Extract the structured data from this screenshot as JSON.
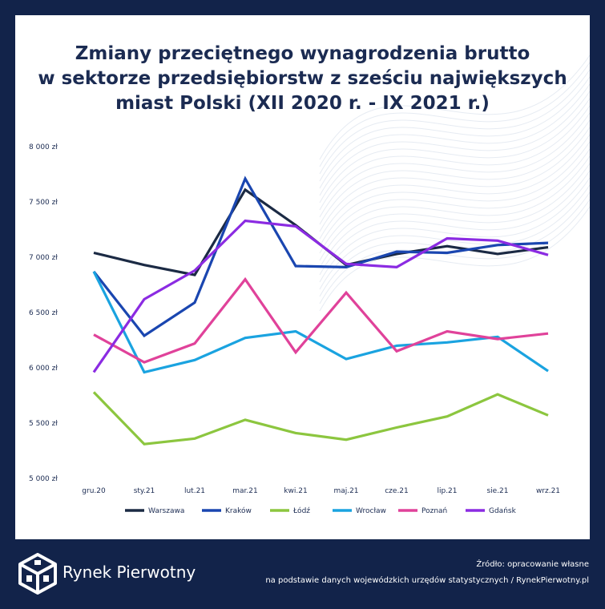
{
  "header": {
    "title_lines": [
      "Zmiany przeciętnego wynagrodzenia brutto",
      "w sektorze przedsiębiorstw z sześciu największych",
      "miast Polski (XII 2020 r. - IX 2021 r.)"
    ]
  },
  "chart_data": {
    "type": "line",
    "title": "Zmiany przeciętnego wynagrodzenia brutto w sektorze przedsiębiorstw z sześciu największych miast Polski (XII 2020 r. - IX 2021 r.)",
    "categories": [
      "gru.20",
      "sty.21",
      "lut.21",
      "mar.21",
      "kwi.21",
      "maj.21",
      "cze.21",
      "lip.21",
      "sie.21",
      "wrz.21"
    ],
    "yticks": [
      "5 000 zł",
      "5 500 zł",
      "6 000 zł",
      "6 500 zł",
      "7 000 zł",
      "7 500 zł",
      "8 000 zł"
    ],
    "ylim": [
      5000,
      8000
    ],
    "legend_position": "bottom",
    "series": [
      {
        "name": "Warszawa",
        "color": "#1b2a44",
        "values": [
          7040,
          6930,
          6840,
          7610,
          7290,
          6930,
          7030,
          7100,
          7030,
          7090
        ]
      },
      {
        "name": "Kraków",
        "color": "#1a46b0",
        "values": [
          6870,
          6290,
          6590,
          7710,
          6920,
          6910,
          7050,
          7040,
          7110,
          7130
        ]
      },
      {
        "name": "Łódź",
        "color": "#8cc63f",
        "values": [
          5780,
          5310,
          5360,
          5530,
          5410,
          5350,
          5460,
          5560,
          5760,
          5570
        ]
      },
      {
        "name": "Wrocław",
        "color": "#1aa3e0",
        "values": [
          6870,
          5960,
          6070,
          6270,
          6330,
          6080,
          6200,
          6230,
          6280,
          5970
        ]
      },
      {
        "name": "Poznań",
        "color": "#e0429a",
        "values": [
          6300,
          6050,
          6220,
          6800,
          6140,
          6680,
          6150,
          6330,
          6260,
          6310
        ]
      },
      {
        "name": "Gdańsk",
        "color": "#8b2be2",
        "values": [
          5960,
          6620,
          6880,
          7330,
          7280,
          6940,
          6910,
          7170,
          7150,
          7020
        ]
      }
    ]
  },
  "footer": {
    "brand": "Rynek Pierwotny",
    "source_line1": "Źródło: opracowanie własne",
    "source_line2": "na podstawie danych wojewódzkich urzędów statystycznych / RynekPierwotny.pl"
  }
}
